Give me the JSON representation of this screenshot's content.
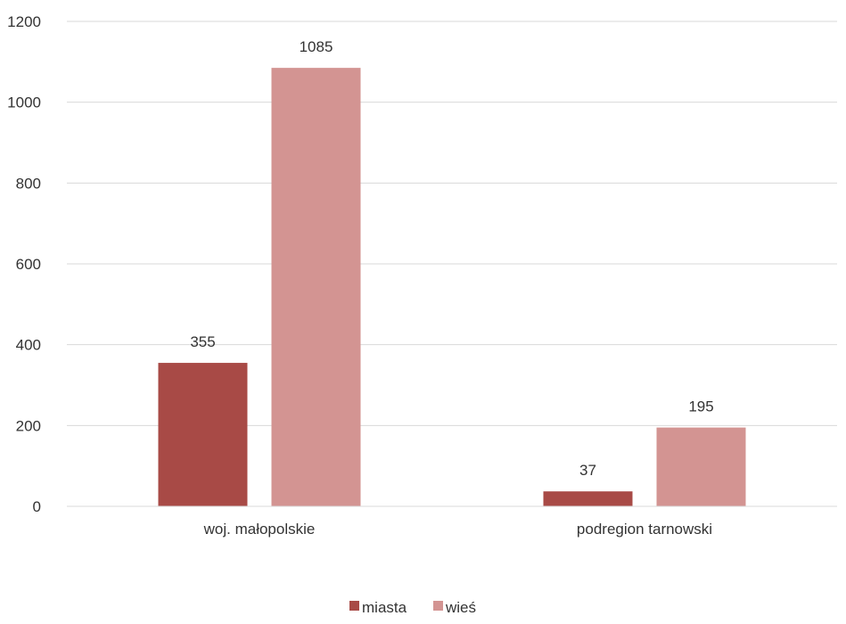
{
  "chart_data": {
    "type": "bar",
    "categories": [
      "woj. małopolskie",
      "podregion tarnowski"
    ],
    "series": [
      {
        "name": "miasta",
        "values": [
          355,
          37
        ],
        "color": "#a84a46"
      },
      {
        "name": "wieś",
        "values": [
          1085,
          195
        ],
        "color": "#d39492"
      }
    ],
    "ylim": [
      0,
      1200
    ],
    "yticks": [
      0,
      200,
      400,
      600,
      800,
      1000,
      1200
    ],
    "grid": true,
    "legend_position": "bottom",
    "data_labels": true
  }
}
